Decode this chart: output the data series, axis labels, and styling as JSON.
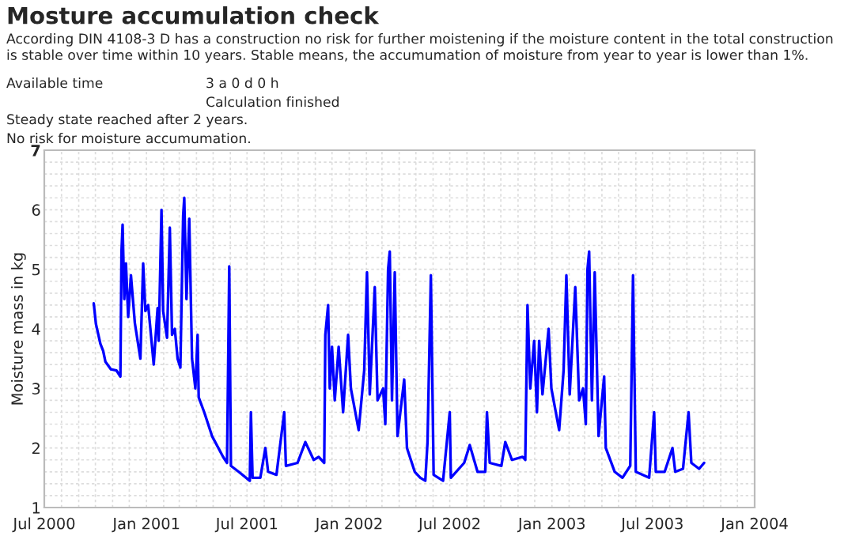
{
  "chart_data": {
    "type": "line",
    "title": "Mosture accumulation check",
    "subtitle": "According DIN 4108-3 D has a construction no risk for further moistening if the moisture content in the total construction is stable over time within 10 years. Stable means, the accumumation of moisture from year to year is lower than 1%.",
    "annotations": [
      "Available time",
      "3 a 0 d 0 h",
      "Calculation finished",
      "Steady state reached after 2 years.",
      "No risk for moisture accumumation."
    ],
    "ylabel": "Moisture mass in kg",
    "xlim": [
      "2000-07-01",
      "2004-01-01"
    ],
    "xticks": [
      {
        "value": "2000-07-01",
        "label": "Jul 2000"
      },
      {
        "value": "2001-01-01",
        "label": "Jan 2001"
      },
      {
        "value": "2001-07-01",
        "label": "Jul 2001"
      },
      {
        "value": "2002-01-01",
        "label": "Jan 2002"
      },
      {
        "value": "2002-07-01",
        "label": "Jul 2002"
      },
      {
        "value": "2003-01-01",
        "label": "Jan 2003"
      },
      {
        "value": "2003-07-01",
        "label": "Jul 2003"
      },
      {
        "value": "2004-01-01",
        "label": "Jan 2004"
      }
    ],
    "ylim": [
      1,
      7
    ],
    "yticks": [
      1,
      2,
      3,
      4,
      5,
      6,
      7
    ],
    "grid": true,
    "legend": false,
    "marker": "none",
    "line_style": "solid",
    "x": [
      "2000-09-28",
      "2000-10-02",
      "2000-10-10",
      "2000-10-15",
      "2000-10-19",
      "2000-10-29",
      "2000-11-08",
      "2000-11-15",
      "2000-11-17",
      "2000-11-19",
      "2000-11-22",
      "2000-11-25",
      "2000-11-29",
      "2000-12-04",
      "2000-12-11",
      "2000-12-21",
      "2000-12-26",
      "2000-12-30",
      "2001-01-04",
      "2001-01-14",
      "2001-01-21",
      "2001-01-23",
      "2001-01-28",
      "2001-01-31",
      "2001-02-07",
      "2001-02-12",
      "2001-02-16",
      "2001-02-21",
      "2001-02-26",
      "2001-03-03",
      "2001-03-08",
      "2001-03-10",
      "2001-03-14",
      "2001-03-19",
      "2001-03-24",
      "2001-03-30",
      "2001-04-03",
      "2001-04-05",
      "2001-04-15",
      "2001-04-29",
      "2001-05-19",
      "2001-05-26",
      "2001-05-30",
      "2001-06-02",
      "2001-06-16",
      "2001-07-06",
      "2001-07-08",
      "2001-07-11",
      "2001-07-25",
      "2001-08-03",
      "2001-08-08",
      "2001-08-23",
      "2001-09-06",
      "2001-09-09",
      "2001-09-30",
      "2001-10-14",
      "2001-10-29",
      "2001-11-07",
      "2001-11-17",
      "2001-11-19",
      "2001-11-24",
      "2001-11-27",
      "2001-12-01",
      "2001-12-06",
      "2001-12-13",
      "2001-12-21",
      "2001-12-30",
      "2002-01-04",
      "2002-01-18",
      "2002-01-28",
      "2002-02-02",
      "2002-02-07",
      "2002-02-16",
      "2002-02-21",
      "2002-03-03",
      "2002-03-07",
      "2002-03-12",
      "2002-03-15",
      "2002-03-19",
      "2002-03-24",
      "2002-03-29",
      "2002-04-10",
      "2002-04-15",
      "2002-04-29",
      "2002-05-09",
      "2002-05-18",
      "2002-05-22",
      "2002-05-28",
      "2002-06-02",
      "2002-06-19",
      "2002-07-01",
      "2002-07-03",
      "2002-07-27",
      "2002-08-06",
      "2002-08-20",
      "2002-09-03",
      "2002-09-06",
      "2002-09-11",
      "2002-10-02",
      "2002-10-09",
      "2002-10-21",
      "2002-11-09",
      "2002-11-14",
      "2002-11-18",
      "2002-11-23",
      "2002-11-30",
      "2002-12-05",
      "2002-12-09",
      "2002-12-15",
      "2002-12-26",
      "2002-12-31",
      "2003-01-14",
      "2003-01-22",
      "2003-01-27",
      "2003-02-02",
      "2003-02-12",
      "2003-02-19",
      "2003-02-26",
      "2003-03-03",
      "2003-03-06",
      "2003-03-09",
      "2003-03-14",
      "2003-03-19",
      "2003-03-26",
      "2003-04-05",
      "2003-04-08",
      "2003-04-24",
      "2003-05-08",
      "2003-05-22",
      "2003-05-27",
      "2003-06-01",
      "2003-06-25",
      "2003-07-04",
      "2003-07-07",
      "2003-07-23",
      "2003-08-06",
      "2003-08-11",
      "2003-08-25",
      "2003-09-04",
      "2003-09-09",
      "2003-09-23",
      "2003-10-02"
    ],
    "series": [
      {
        "color": "#0000ff",
        "values": [
          4.43,
          4.08,
          3.75,
          3.63,
          3.45,
          3.32,
          3.3,
          3.2,
          5.3,
          5.75,
          4.5,
          5.1,
          4.2,
          4.9,
          4.1,
          3.5,
          5.1,
          4.3,
          4.4,
          3.4,
          4.35,
          3.8,
          6.0,
          4.3,
          3.85,
          5.7,
          3.9,
          4.0,
          3.5,
          3.35,
          5.9,
          6.2,
          4.5,
          5.85,
          3.5,
          3.0,
          3.9,
          2.85,
          2.6,
          2.2,
          1.85,
          1.75,
          5.05,
          1.7,
          1.6,
          1.45,
          2.6,
          1.5,
          1.5,
          2.0,
          1.6,
          1.55,
          2.6,
          1.7,
          1.75,
          2.1,
          1.8,
          1.85,
          1.75,
          3.9,
          4.4,
          3.0,
          3.7,
          2.8,
          3.7,
          2.6,
          3.9,
          3.0,
          2.3,
          3.3,
          4.95,
          2.9,
          4.7,
          2.8,
          3.0,
          2.4,
          5.0,
          5.3,
          2.8,
          4.95,
          2.2,
          3.15,
          2.0,
          1.6,
          1.5,
          1.45,
          2.1,
          4.9,
          1.55,
          1.45,
          2.6,
          1.5,
          1.75,
          2.05,
          1.6,
          1.6,
          2.6,
          1.75,
          1.7,
          2.1,
          1.8,
          1.85,
          1.8,
          4.4,
          3.0,
          3.8,
          2.6,
          3.8,
          2.9,
          4.0,
          3.0,
          2.3,
          3.3,
          4.9,
          2.9,
          4.7,
          2.8,
          3.0,
          2.4,
          5.0,
          5.3,
          2.8,
          4.95,
          2.2,
          3.2,
          2.0,
          1.6,
          1.5,
          1.7,
          4.9,
          1.6,
          1.5,
          2.6,
          1.6,
          1.6,
          2.0,
          1.6,
          1.65,
          2.6,
          1.75,
          1.65,
          1.75
        ]
      }
    ]
  }
}
